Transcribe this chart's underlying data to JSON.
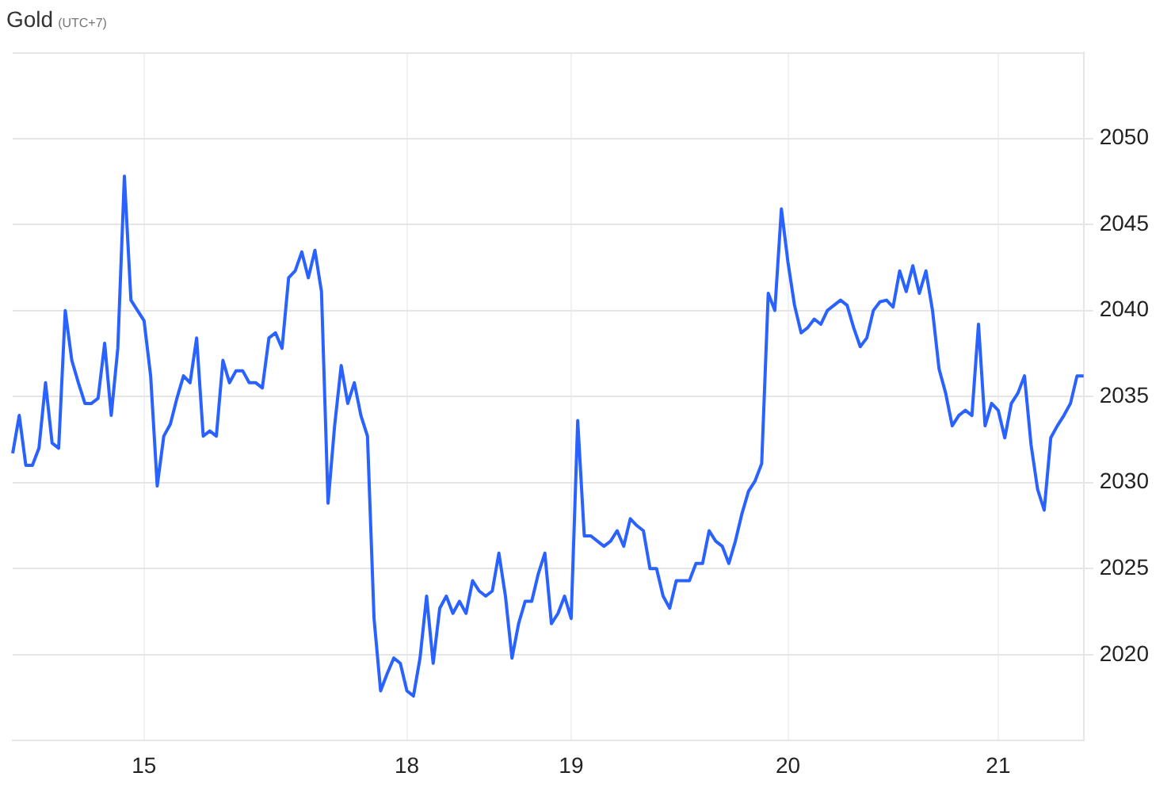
{
  "chart_data": {
    "type": "line",
    "title": "Gold",
    "subtitle": "(UTC+7)",
    "categories": [
      null,
      null,
      null,
      null,
      null,
      null,
      null,
      null,
      null,
      null,
      null,
      null,
      null,
      null,
      null,
      null,
      null,
      null,
      null,
      null,
      "15",
      null,
      null,
      null,
      null,
      null,
      null,
      null,
      null,
      null,
      null,
      null,
      null,
      null,
      null,
      null,
      null,
      null,
      null,
      null,
      null,
      null,
      null,
      null,
      null,
      null,
      null,
      null,
      null,
      null,
      null,
      null,
      null,
      null,
      null,
      null,
      null,
      null,
      null,
      null,
      "18",
      null,
      null,
      null,
      null,
      null,
      null,
      null,
      null,
      null,
      null,
      null,
      null,
      null,
      null,
      null,
      null,
      null,
      null,
      null,
      null,
      null,
      null,
      null,
      null,
      "19",
      null,
      null,
      null,
      null,
      null,
      null,
      null,
      null,
      null,
      null,
      null,
      null,
      null,
      null,
      null,
      null,
      null,
      null,
      null,
      null,
      null,
      null,
      null,
      null,
      null,
      null,
      null,
      null,
      null,
      null,
      null,
      null,
      "20",
      null,
      null,
      null,
      null,
      null,
      null,
      null,
      null,
      null,
      null,
      null,
      null,
      null,
      null,
      null,
      null,
      null,
      null,
      null,
      null,
      null,
      null,
      null,
      null,
      null,
      null,
      null,
      null,
      null,
      null,
      null,
      "21",
      null,
      null,
      null,
      null,
      null,
      null,
      null,
      null,
      null,
      null,
      null,
      null,
      null
    ],
    "series": [
      {
        "color": "#2962ff",
        "values": [
          2031.7,
          2033.9,
          2031.0,
          2031.0,
          2032.0,
          2035.8,
          2032.3,
          2032.0,
          2040.0,
          2037.1,
          2035.8,
          2034.6,
          2034.6,
          2034.9,
          2038.1,
          2033.9,
          2037.8,
          2047.8,
          2040.6,
          2040.0,
          2039.4,
          2036.2,
          2029.8,
          2032.7,
          2033.4,
          2034.9,
          2036.2,
          2035.8,
          2038.4,
          2032.7,
          2033.0,
          2032.7,
          2037.1,
          2035.8,
          2036.5,
          2036.5,
          2035.8,
          2035.8,
          2035.5,
          2038.4,
          2038.7,
          2037.8,
          2041.9,
          2042.3,
          2043.4,
          2041.9,
          2043.5,
          2041.1,
          2028.8,
          2033.3,
          2036.8,
          2034.6,
          2035.8,
          2033.9,
          2032.7,
          2022.1,
          2017.9,
          2018.9,
          2019.8,
          2019.5,
          2017.9,
          2017.6,
          2019.8,
          2023.4,
          2019.5,
          2022.7,
          2023.4,
          2022.4,
          2023.1,
          2022.4,
          2024.3,
          2023.7,
          2023.4,
          2023.7,
          2025.9,
          2023.4,
          2019.8,
          2021.8,
          2023.1,
          2023.1,
          2024.7,
          2025.9,
          2021.8,
          2022.4,
          2023.4,
          2022.1,
          2033.6,
          2026.9,
          2026.9,
          2026.6,
          2026.3,
          2026.6,
          2027.2,
          2026.3,
          2027.9,
          2027.5,
          2027.2,
          2025.0,
          2025.0,
          2023.4,
          2022.7,
          2024.3,
          2024.3,
          2024.3,
          2025.3,
          2025.3,
          2027.2,
          2026.6,
          2026.3,
          2025.3,
          2026.6,
          2028.2,
          2029.5,
          2030.1,
          2031.1,
          2041.0,
          2040.0,
          2045.9,
          2042.8,
          2040.3,
          2038.7,
          2039.0,
          2039.5,
          2039.2,
          2040.0,
          2040.3,
          2040.6,
          2040.3,
          2039.0,
          2037.9,
          2038.4,
          2040.0,
          2040.5,
          2040.6,
          2040.2,
          2042.3,
          2041.1,
          2042.6,
          2041.0,
          2042.3,
          2040.0,
          2036.6,
          2035.2,
          2033.3,
          2033.9,
          2034.2,
          2033.9,
          2039.2,
          2033.3,
          2034.6,
          2034.2,
          2032.6,
          2034.6,
          2035.2,
          2036.2,
          2032.2,
          2029.6,
          2028.4,
          2032.6,
          2033.3,
          2033.9,
          2034.6,
          2036.2,
          2036.2
        ]
      }
    ],
    "ylim": [
      2015,
      2055
    ],
    "yticks": [
      2020,
      2025,
      2030,
      2035,
      2040,
      2045,
      2050
    ],
    "grid": true,
    "legend": false
  }
}
